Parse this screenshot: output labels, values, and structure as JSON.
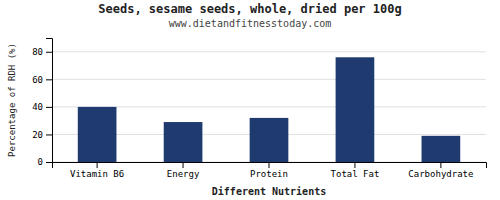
{
  "chart_data": {
    "type": "bar",
    "title": "Seeds, sesame seeds, whole, dried per 100g",
    "subtitle": "www.dietandfitnesstoday.com",
    "xlabel": "Different Nutrients",
    "ylabel": "Percentage of RDH (%)",
    "categories": [
      "Vitamin B6",
      "Energy",
      "Protein",
      "Total Fat",
      "Carbohydrate"
    ],
    "values": [
      40,
      29,
      32,
      76,
      19
    ],
    "color": "#1e3a6e",
    "ylim": [
      0,
      90
    ],
    "yticks": [
      0,
      20,
      40,
      60,
      80
    ],
    "grid": true
  }
}
